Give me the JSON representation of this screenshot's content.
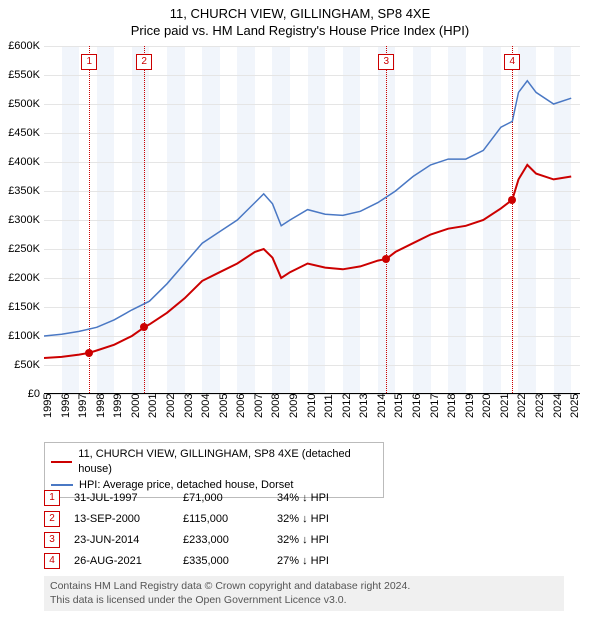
{
  "titles": {
    "line1": "11, CHURCH VIEW, GILLINGHAM, SP8 4XE",
    "line2": "Price paid vs. HM Land Registry's House Price Index (HPI)"
  },
  "chart": {
    "type": "line",
    "x_domain": [
      1995,
      2025.5
    ],
    "y_domain": [
      0,
      600000
    ],
    "y_ticks": [
      0,
      50000,
      100000,
      150000,
      200000,
      250000,
      300000,
      350000,
      400000,
      450000,
      500000,
      550000,
      600000
    ],
    "y_tick_labels": [
      "£0",
      "£50K",
      "£100K",
      "£150K",
      "£200K",
      "£250K",
      "£300K",
      "£350K",
      "£400K",
      "£450K",
      "£500K",
      "£550K",
      "£600K"
    ],
    "x_ticks": [
      1995,
      1996,
      1997,
      1998,
      1999,
      2000,
      2001,
      2002,
      2003,
      2004,
      2005,
      2006,
      2007,
      2008,
      2009,
      2010,
      2011,
      2012,
      2013,
      2014,
      2015,
      2016,
      2017,
      2018,
      2019,
      2020,
      2021,
      2022,
      2023,
      2024,
      2025
    ],
    "grid_color": "#e5e5e5",
    "band_color": "#f1f5fb",
    "background_color": "#ffffff",
    "series": {
      "property": {
        "label": "11, CHURCH VIEW, GILLINGHAM, SP8 4XE (detached house)",
        "color": "#cc0000",
        "width": 2,
        "points": [
          [
            1995,
            62000
          ],
          [
            1996,
            64000
          ],
          [
            1997,
            68000
          ],
          [
            1997.58,
            71000
          ],
          [
            1998,
            75000
          ],
          [
            1999,
            85000
          ],
          [
            2000,
            100000
          ],
          [
            2000.7,
            115000
          ],
          [
            2001,
            120000
          ],
          [
            2002,
            140000
          ],
          [
            2003,
            165000
          ],
          [
            2004,
            195000
          ],
          [
            2005,
            210000
          ],
          [
            2006,
            225000
          ],
          [
            2007,
            245000
          ],
          [
            2007.5,
            250000
          ],
          [
            2008,
            235000
          ],
          [
            2008.5,
            200000
          ],
          [
            2009,
            210000
          ],
          [
            2010,
            225000
          ],
          [
            2011,
            218000
          ],
          [
            2012,
            215000
          ],
          [
            2013,
            220000
          ],
          [
            2014,
            230000
          ],
          [
            2014.48,
            233000
          ],
          [
            2015,
            245000
          ],
          [
            2016,
            260000
          ],
          [
            2017,
            275000
          ],
          [
            2018,
            285000
          ],
          [
            2019,
            290000
          ],
          [
            2020,
            300000
          ],
          [
            2021,
            320000
          ],
          [
            2021.65,
            335000
          ],
          [
            2022,
            370000
          ],
          [
            2022.5,
            395000
          ],
          [
            2023,
            380000
          ],
          [
            2024,
            370000
          ],
          [
            2025,
            375000
          ]
        ]
      },
      "hpi": {
        "label": "HPI: Average price, detached house, Dorset",
        "color": "#4a78c4",
        "width": 1.5,
        "points": [
          [
            1995,
            100000
          ],
          [
            1996,
            103000
          ],
          [
            1997,
            108000
          ],
          [
            1998,
            115000
          ],
          [
            1999,
            128000
          ],
          [
            2000,
            145000
          ],
          [
            2001,
            160000
          ],
          [
            2002,
            190000
          ],
          [
            2003,
            225000
          ],
          [
            2004,
            260000
          ],
          [
            2005,
            280000
          ],
          [
            2006,
            300000
          ],
          [
            2007,
            330000
          ],
          [
            2007.5,
            345000
          ],
          [
            2008,
            328000
          ],
          [
            2008.5,
            290000
          ],
          [
            2009,
            300000
          ],
          [
            2010,
            318000
          ],
          [
            2011,
            310000
          ],
          [
            2012,
            308000
          ],
          [
            2013,
            315000
          ],
          [
            2014,
            330000
          ],
          [
            2015,
            350000
          ],
          [
            2016,
            375000
          ],
          [
            2017,
            395000
          ],
          [
            2018,
            405000
          ],
          [
            2019,
            405000
          ],
          [
            2020,
            420000
          ],
          [
            2021,
            460000
          ],
          [
            2021.65,
            470000
          ],
          [
            2022,
            520000
          ],
          [
            2022.5,
            540000
          ],
          [
            2023,
            520000
          ],
          [
            2024,
            500000
          ],
          [
            2025,
            510000
          ]
        ]
      }
    },
    "sale_events": [
      {
        "n": "1",
        "date": "31-JUL-1997",
        "x": 1997.58,
        "price": 71000,
        "price_label": "£71,000",
        "diff": "34% ↓ HPI"
      },
      {
        "n": "2",
        "date": "13-SEP-2000",
        "x": 2000.7,
        "price": 115000,
        "price_label": "£115,000",
        "diff": "32% ↓ HPI"
      },
      {
        "n": "3",
        "date": "23-JUN-2014",
        "x": 2014.48,
        "price": 233000,
        "price_label": "£233,000",
        "diff": "32% ↓ HPI"
      },
      {
        "n": "4",
        "date": "26-AUG-2021",
        "x": 2021.65,
        "price": 335000,
        "price_label": "£335,000",
        "diff": "27% ↓ HPI"
      }
    ]
  },
  "legend": {
    "rows": [
      {
        "color": "#cc0000",
        "label": "11, CHURCH VIEW, GILLINGHAM, SP8 4XE (detached house)"
      },
      {
        "color": "#4a78c4",
        "label": "HPI: Average price, detached house, Dorset"
      }
    ]
  },
  "attribution": {
    "line1": "Contains HM Land Registry data © Crown copyright and database right 2024.",
    "line2": "This data is licensed under the Open Government Licence v3.0."
  }
}
